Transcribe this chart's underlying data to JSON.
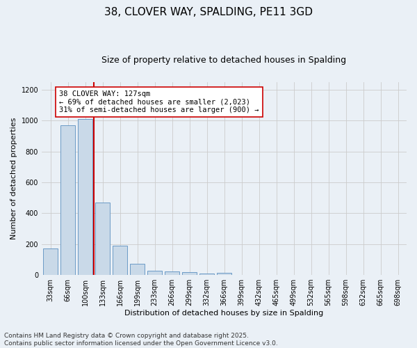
{
  "title": "38, CLOVER WAY, SPALDING, PE11 3GD",
  "subtitle": "Size of property relative to detached houses in Spalding",
  "xlabel": "Distribution of detached houses by size in Spalding",
  "ylabel": "Number of detached properties",
  "bar_color": "#c9d9e8",
  "bar_edge_color": "#5a8fc0",
  "categories": [
    "33sqm",
    "66sqm",
    "100sqm",
    "133sqm",
    "166sqm",
    "199sqm",
    "233sqm",
    "266sqm",
    "299sqm",
    "332sqm",
    "366sqm",
    "399sqm",
    "432sqm",
    "465sqm",
    "499sqm",
    "532sqm",
    "565sqm",
    "598sqm",
    "632sqm",
    "665sqm",
    "698sqm"
  ],
  "values": [
    170,
    970,
    1010,
    470,
    190,
    75,
    28,
    23,
    17,
    12,
    13,
    0,
    0,
    0,
    0,
    0,
    0,
    0,
    0,
    0,
    0
  ],
  "vline_index": 2,
  "vline_color": "#cc0000",
  "annotation_line1": "38 CLOVER WAY: 127sqm",
  "annotation_line2": "← 69% of detached houses are smaller (2,023)",
  "annotation_line3": "31% of semi-detached houses are larger (900) →",
  "annotation_box_color": "#ffffff",
  "annotation_box_edge": "#cc0000",
  "ylim": [
    0,
    1250
  ],
  "yticks": [
    0,
    200,
    400,
    600,
    800,
    1000,
    1200
  ],
  "grid_color": "#cccccc",
  "background_color": "#eaf0f6",
  "footer_line1": "Contains HM Land Registry data © Crown copyright and database right 2025.",
  "footer_line2": "Contains public sector information licensed under the Open Government Licence v3.0.",
  "title_fontsize": 11,
  "subtitle_fontsize": 9,
  "axis_label_fontsize": 8,
  "tick_fontsize": 7,
  "footer_fontsize": 6.5,
  "annotation_fontsize": 7.5
}
